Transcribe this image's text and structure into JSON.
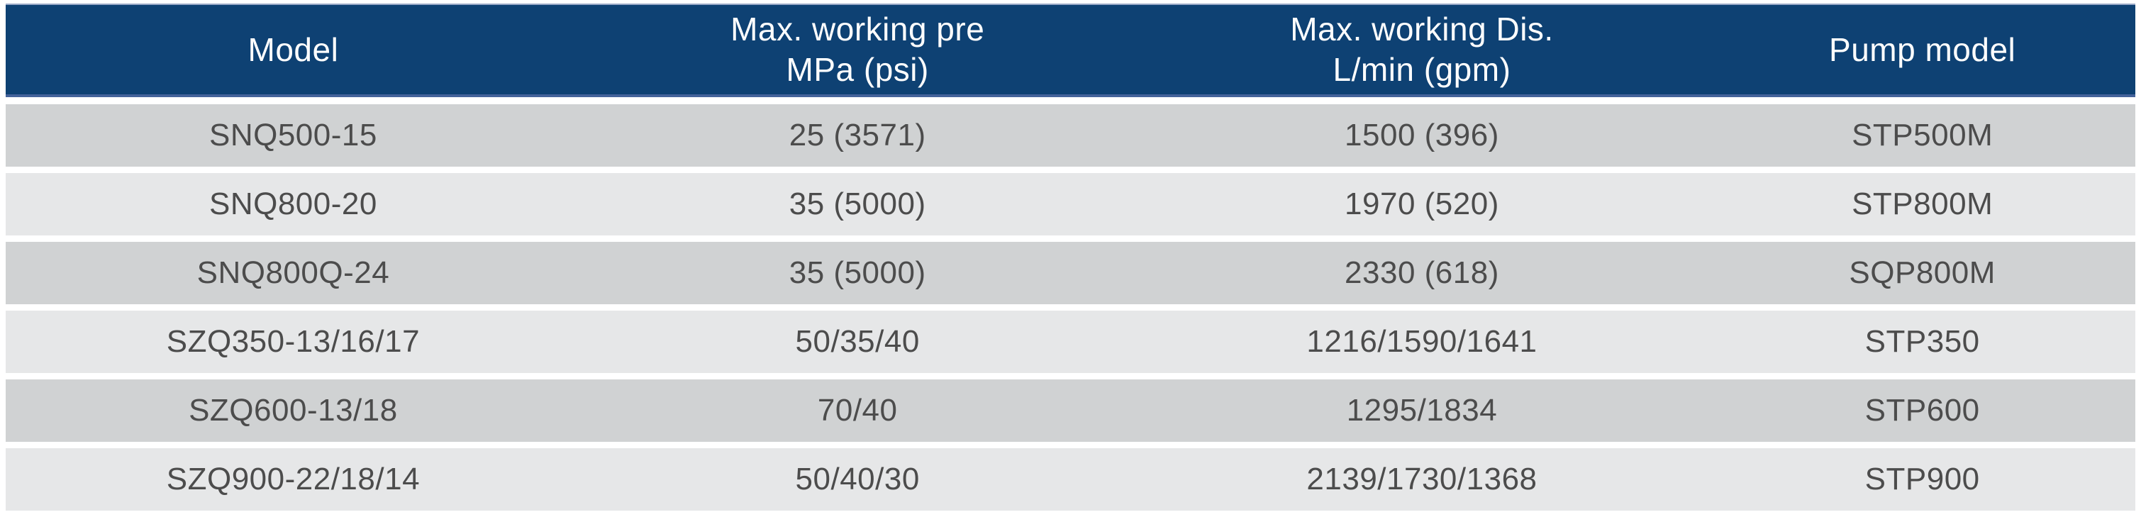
{
  "table": {
    "columns": [
      {
        "label": "Model",
        "sub": ""
      },
      {
        "label": "Max. working pre",
        "sub": "MPa (psi)"
      },
      {
        "label": "Max. working Dis.",
        "sub": "L/min (gpm)"
      },
      {
        "label": "Pump model",
        "sub": ""
      }
    ],
    "rows": [
      [
        "SNQ500-15",
        "25 (3571)",
        "1500 (396)",
        "STP500M"
      ],
      [
        "SNQ800-20",
        "35 (5000)",
        "1970 (520)",
        "STP800M"
      ],
      [
        "SNQ800Q-24",
        "35 (5000)",
        "2330 (618)",
        "SQP800M"
      ],
      [
        "SZQ350-13/16/17",
        "50/35/40",
        "1216/1590/1641",
        "STP350"
      ],
      [
        "SZQ600-13/18",
        "70/40",
        "1295/1834",
        "STP600"
      ],
      [
        "SZQ900-22/18/14",
        "50/40/30",
        "2139/1730/1368",
        "STP900"
      ]
    ]
  },
  "chart_data": {
    "type": "table",
    "title": "",
    "columns": [
      "Model",
      "Max. working pre MPa (psi)",
      "Max. working Dis. L/min (gpm)",
      "Pump model"
    ],
    "rows": [
      [
        "SNQ500-15",
        "25 (3571)",
        "1500 (396)",
        "STP500M"
      ],
      [
        "SNQ800-20",
        "35 (5000)",
        "1970 (520)",
        "STP800M"
      ],
      [
        "SNQ800Q-24",
        "35 (5000)",
        "2330 (618)",
        "SQP800M"
      ],
      [
        "SZQ350-13/16/17",
        "50/35/40",
        "1216/1590/1641",
        "STP350"
      ],
      [
        "SZQ600-13/18",
        "70/40",
        "1295/1834",
        "STP600"
      ],
      [
        "SZQ900-22/18/14",
        "50/40/30",
        "2139/1730/1368",
        "STP900"
      ]
    ]
  },
  "colors": {
    "header_bg": "#0e4173",
    "header_text": "#ffffff",
    "header_border_top": "#9aa9c7",
    "header_border_bottom": "#44639a",
    "row_dark": "#d0d2d3",
    "row_light": "#e6e7e8",
    "cell_text": "#4c4c4c",
    "page_bg": "#ffffff"
  }
}
